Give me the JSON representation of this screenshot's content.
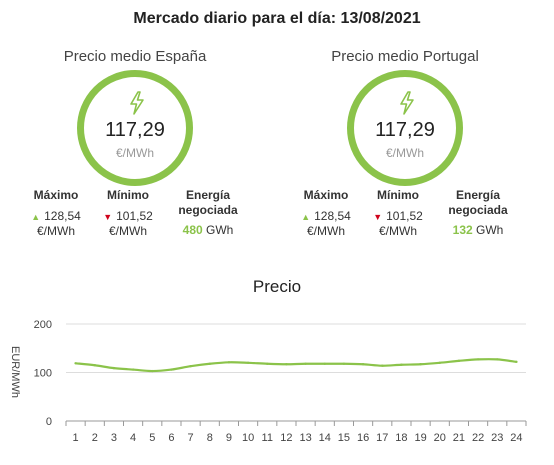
{
  "title": "Mercado diario para el día: 13/08/2021",
  "panels": [
    {
      "title": "Precio medio España",
      "price": "117,29",
      "unit": "€/MWh",
      "max_label": "Máximo",
      "max_value": "128,54",
      "max_unit": "€/MWh",
      "min_label": "Mínimo",
      "min_value": "101,52",
      "min_unit": "€/MWh",
      "energy_label_1": "Energía",
      "energy_label_2": "negociada",
      "energy_value": "480",
      "energy_unit": "GWh"
    },
    {
      "title": "Precio medio Portugal",
      "price": "117,29",
      "unit": "€/MWh",
      "max_label": "Máximo",
      "max_value": "128,54",
      "max_unit": "€/MWh",
      "min_label": "Mínimo",
      "min_value": "101,52",
      "min_unit": "€/MWh",
      "energy_label_1": "Energía",
      "energy_label_2": "negociada",
      "energy_value": "132",
      "energy_unit": "GWh"
    }
  ],
  "colors": {
    "accent": "#8bc34a",
    "down": "#d0021b"
  },
  "chart_data": {
    "type": "line",
    "title": "Precio",
    "xlabel": "",
    "ylabel": "EUR/MWh",
    "x": [
      1,
      2,
      3,
      4,
      5,
      6,
      7,
      8,
      9,
      10,
      11,
      12,
      13,
      14,
      15,
      16,
      17,
      18,
      19,
      20,
      21,
      22,
      23,
      24
    ],
    "values": [
      119,
      115,
      109,
      106,
      103,
      106,
      113,
      118,
      121,
      120,
      118,
      117,
      118,
      118,
      118,
      117,
      114,
      116,
      117,
      120,
      124,
      127,
      127,
      122
    ],
    "ylim": [
      0,
      200
    ],
    "yticks": [
      0,
      100,
      200
    ],
    "grid": true,
    "color": "#8bc34a"
  }
}
